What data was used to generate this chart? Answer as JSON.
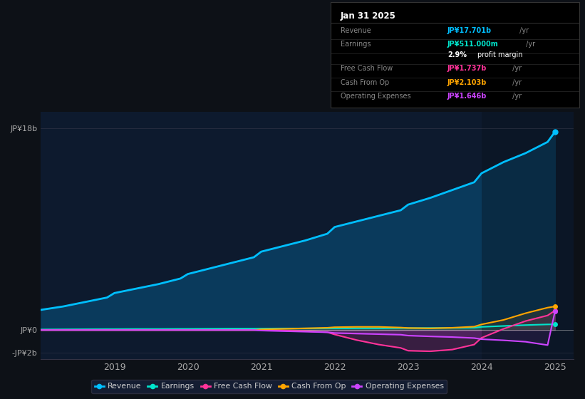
{
  "bg_color": "#0d1117",
  "plot_bg_color": "#0d1a2e",
  "title": "Jan 31 2025",
  "years": [
    2018.0,
    2018.3,
    2018.6,
    2018.9,
    2019.0,
    2019.3,
    2019.6,
    2019.9,
    2020.0,
    2020.3,
    2020.6,
    2020.9,
    2021.0,
    2021.3,
    2021.6,
    2021.9,
    2022.0,
    2022.3,
    2022.6,
    2022.9,
    2023.0,
    2023.3,
    2023.6,
    2023.9,
    2024.0,
    2024.3,
    2024.6,
    2024.9,
    2025.0
  ],
  "revenue": [
    1.8,
    2.1,
    2.5,
    2.9,
    3.3,
    3.7,
    4.1,
    4.6,
    5.0,
    5.5,
    6.0,
    6.5,
    7.0,
    7.5,
    8.0,
    8.6,
    9.2,
    9.7,
    10.2,
    10.7,
    11.2,
    11.8,
    12.5,
    13.2,
    14.0,
    15.0,
    15.8,
    16.8,
    17.7
  ],
  "earnings": [
    0.05,
    0.06,
    0.07,
    0.08,
    0.08,
    0.09,
    0.09,
    0.1,
    0.1,
    0.11,
    0.12,
    0.12,
    0.13,
    0.14,
    0.14,
    0.15,
    0.15,
    0.16,
    0.16,
    0.17,
    0.17,
    0.18,
    0.19,
    0.21,
    0.28,
    0.36,
    0.44,
    0.5,
    0.511
  ],
  "free_cash_flow": [
    0.0,
    0.0,
    0.0,
    0.0,
    0.0,
    0.0,
    0.0,
    0.0,
    0.0,
    0.0,
    0.0,
    0.0,
    0.0,
    -0.05,
    -0.1,
    -0.2,
    -0.4,
    -0.9,
    -1.3,
    -1.6,
    -1.85,
    -1.9,
    -1.75,
    -1.3,
    -0.7,
    0.1,
    0.8,
    1.3,
    1.737
  ],
  "cash_from_op": [
    0.0,
    0.0,
    0.0,
    0.0,
    0.0,
    0.0,
    0.0,
    0.0,
    0.0,
    0.0,
    0.0,
    0.0,
    0.05,
    0.1,
    0.15,
    0.2,
    0.25,
    0.28,
    0.28,
    0.22,
    0.18,
    0.15,
    0.2,
    0.3,
    0.5,
    0.9,
    1.5,
    2.0,
    2.103
  ],
  "operating_expenses": [
    0.0,
    0.0,
    0.0,
    0.0,
    0.0,
    0.0,
    0.0,
    0.0,
    0.0,
    0.0,
    0.0,
    0.0,
    -0.05,
    -0.1,
    -0.15,
    -0.2,
    -0.27,
    -0.32,
    -0.37,
    -0.42,
    -0.5,
    -0.57,
    -0.63,
    -0.72,
    -0.82,
    -0.92,
    -1.05,
    -1.35,
    1.646
  ],
  "revenue_color": "#00bfff",
  "earnings_color": "#00e5cc",
  "fcf_color": "#ff3399",
  "cashop_color": "#ffa500",
  "opex_color": "#cc44ff",
  "revenue_fill": "#0a3a5c",
  "ylim_min": -2.6,
  "ylim_max": 19.5,
  "xlim_min": 2018.0,
  "xlim_max": 2025.25,
  "xticks": [
    2019,
    2020,
    2021,
    2022,
    2023,
    2024,
    2025
  ],
  "xtick_labels": [
    "2019",
    "2020",
    "2021",
    "2022",
    "2023",
    "2024",
    "2025"
  ],
  "legend_labels": [
    "Revenue",
    "Earnings",
    "Free Cash Flow",
    "Cash From Op",
    "Operating Expenses"
  ],
  "legend_colors": [
    "#00bfff",
    "#00e5cc",
    "#ff3399",
    "#ffa500",
    "#cc44ff"
  ],
  "info_rows": [
    {
      "label": "Revenue",
      "value": "JP¥17.701b",
      "unit": " /yr",
      "value_color": "#00bfff"
    },
    {
      "label": "Earnings",
      "value": "JP¥511.000m",
      "unit": " /yr",
      "value_color": "#00e5cc"
    },
    {
      "label": "",
      "value": "2.9%",
      "unit": " profit margin",
      "value_color": "#ffffff"
    },
    {
      "label": "Free Cash Flow",
      "value": "JP¥1.737b",
      "unit": " /yr",
      "value_color": "#ff3399"
    },
    {
      "label": "Cash From Op",
      "value": "JP¥2.103b",
      "unit": " /yr",
      "value_color": "#ffa500"
    },
    {
      "label": "Operating Expenses",
      "value": "JP¥1.646b",
      "unit": " /yr",
      "value_color": "#cc44ff"
    }
  ]
}
